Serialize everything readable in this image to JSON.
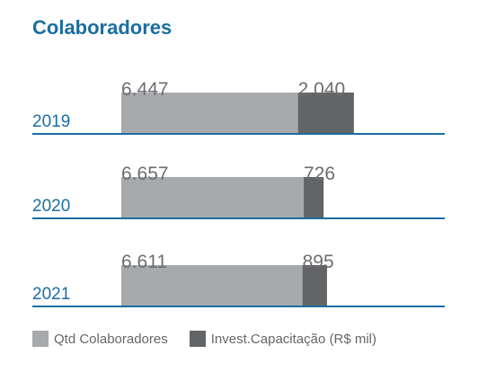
{
  "chart_data": {
    "type": "bar",
    "orientation": "horizontal",
    "stacked": true,
    "title": "Colaboradores",
    "categories": [
      "2019",
      "2020",
      "2021"
    ],
    "series": [
      {
        "name": "Qtd Colaboradores",
        "values": [
          6447,
          6657,
          6611
        ],
        "labels": [
          "6.447",
          "6.657",
          "6.611"
        ],
        "color": "#a7a9ac"
      },
      {
        "name": "Invest.Capacitação (R$ mil)",
        "values": [
          2040,
          726,
          895
        ],
        "labels": [
          "2.040",
          "726",
          "895"
        ],
        "color": "#636466"
      }
    ],
    "axis_color": "#1a6ea1",
    "legend_position": "bottom-left",
    "grid": false
  }
}
